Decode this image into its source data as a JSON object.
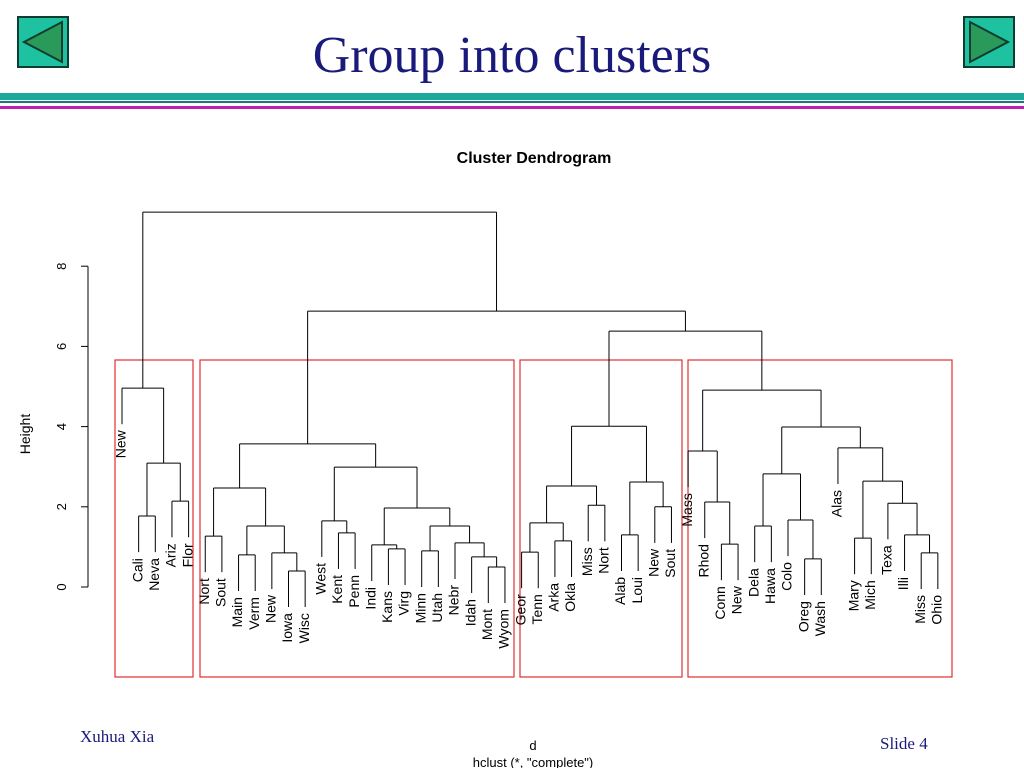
{
  "header": {
    "title": "Group into clusters"
  },
  "dendrogram": {
    "title": "Cluster Dendrogram",
    "ylabel": "Height",
    "xlabel": "d",
    "sub": "hclust (*, \"complete\")",
    "yticks": [
      0,
      2,
      4,
      6,
      8
    ],
    "leaves": [
      "New",
      "Cali",
      "Neva",
      "Ariz",
      "Flor",
      "Nort",
      "Sout",
      "Main",
      "Verm",
      "New",
      "Iowa",
      "Wisc",
      "West",
      "Kent",
      "Penn",
      "Indi",
      "Kans",
      "Virg",
      "Minn",
      "Utah",
      "Nebr",
      "Idah",
      "Mont",
      "Wyom",
      "Geor",
      "Tenn",
      "Arka",
      "Okla",
      "Miss",
      "Nort",
      "Alab",
      "Loui",
      "New",
      "Sout",
      "Mass",
      "Rhod",
      "Conn",
      "New",
      "Dela",
      "Hawa",
      "Colo",
      "Oreg",
      "Wash",
      "Alas",
      "Mary",
      "Mich",
      "Texa",
      "Illi",
      "Miss",
      "Ohio"
    ],
    "tree": {
      "height": 9.35,
      "children": [
        {
          "height": 4.96,
          "children": [
            0,
            {
              "height": 3.09,
              "children": [
                {
                  "height": 1.77,
                  "children": [
                    1,
                    2
                  ]
                },
                {
                  "height": 2.14,
                  "children": [
                    3,
                    4
                  ]
                }
              ]
            }
          ]
        },
        {
          "height": 6.88,
          "children": [
            {
              "height": 3.57,
              "children": [
                {
                  "height": 2.47,
                  "children": [
                    {
                      "height": 1.27,
                      "children": [
                        5,
                        6
                      ]
                    },
                    {
                      "height": 1.52,
                      "children": [
                        {
                          "height": 0.8,
                          "children": [
                            7,
                            8
                          ]
                        },
                        {
                          "height": 0.85,
                          "children": [
                            9,
                            {
                              "height": 0.4,
                              "children": [
                                10,
                                11
                              ]
                            }
                          ]
                        }
                      ]
                    }
                  ]
                },
                {
                  "height": 2.99,
                  "children": [
                    {
                      "height": 1.65,
                      "children": [
                        12,
                        {
                          "height": 1.35,
                          "children": [
                            13,
                            14
                          ]
                        }
                      ]
                    },
                    {
                      "height": 1.97,
                      "children": [
                        {
                          "height": 1.05,
                          "children": [
                            15,
                            {
                              "height": 0.95,
                              "children": [
                                16,
                                17
                              ]
                            }
                          ]
                        },
                        {
                          "height": 1.52,
                          "children": [
                            {
                              "height": 0.9,
                              "children": [
                                18,
                                19
                              ]
                            },
                            {
                              "height": 1.1,
                              "children": [
                                20,
                                {
                                  "height": 0.75,
                                  "children": [
                                    21,
                                    {
                                      "height": 0.5,
                                      "children": [
                                        22,
                                        23
                                      ]
                                    }
                                  ]
                                }
                              ]
                            }
                          ]
                        }
                      ]
                    }
                  ]
                }
              ]
            },
            {
              "height": 6.38,
              "children": [
                {
                  "height": 4.01,
                  "children": [
                    {
                      "height": 2.52,
                      "children": [
                        {
                          "height": 1.6,
                          "children": [
                            {
                              "height": 0.87,
                              "children": [
                                24,
                                25
                              ]
                            },
                            {
                              "height": 1.15,
                              "children": [
                                26,
                                27
                              ]
                            }
                          ]
                        },
                        {
                          "height": 2.04,
                          "children": [
                            28,
                            29
                          ]
                        }
                      ]
                    },
                    {
                      "height": 2.62,
                      "children": [
                        {
                          "height": 1.3,
                          "children": [
                            30,
                            31
                          ]
                        },
                        {
                          "height": 2.0,
                          "children": [
                            32,
                            33
                          ]
                        }
                      ]
                    }
                  ]
                },
                {
                  "height": 4.91,
                  "children": [
                    {
                      "height": 3.39,
                      "children": [
                        34,
                        {
                          "height": 2.12,
                          "children": [
                            35,
                            {
                              "height": 1.07,
                              "children": [
                                36,
                                37
                              ]
                            }
                          ]
                        }
                      ]
                    },
                    {
                      "height": 3.99,
                      "children": [
                        {
                          "height": 2.82,
                          "children": [
                            {
                              "height": 1.52,
                              "children": [
                                38,
                                39
                              ]
                            },
                            {
                              "height": 1.67,
                              "children": [
                                40,
                                {
                                  "height": 0.7,
                                  "children": [
                                    41,
                                    42
                                  ]
                                }
                              ]
                            }
                          ]
                        },
                        {
                          "height": 3.47,
                          "children": [
                            43,
                            {
                              "height": 2.64,
                              "children": [
                                {
                                  "height": 1.22,
                                  "children": [
                                    44,
                                    45
                                  ]
                                },
                                {
                                  "height": 2.09,
                                  "children": [
                                    46,
                                    {
                                      "height": 1.3,
                                      "children": [
                                        47,
                                        {
                                          "height": 0.85,
                                          "children": [
                                            48,
                                            49
                                          ]
                                        }
                                      ]
                                    }
                                  ]
                                }
                              ]
                            }
                          ]
                        }
                      ]
                    }
                  ]
                }
              ]
            }
          ]
        }
      ]
    }
  },
  "footer": {
    "author": "Xuhua Xia",
    "slide": "Slide 4"
  }
}
